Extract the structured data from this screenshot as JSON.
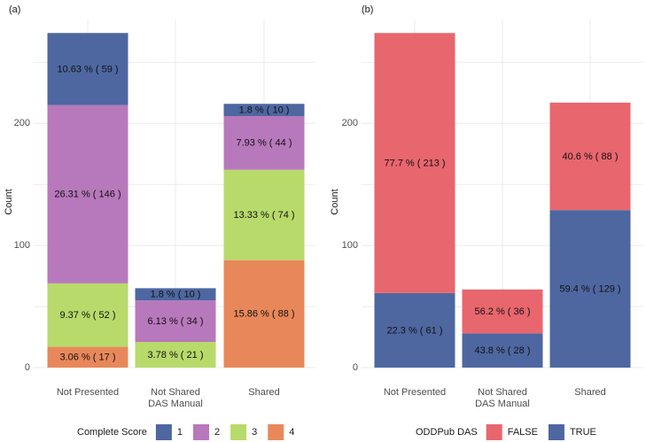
{
  "chart_data": [
    {
      "panel": "(a)",
      "type": "bar",
      "stacked": true,
      "ylabel": "Count",
      "xlabel": "",
      "ylim": [
        0,
        280
      ],
      "yticks": [
        0,
        100,
        200
      ],
      "grid": true,
      "categories": [
        [
          "Not Presented"
        ],
        [
          "Not Shared",
          "DAS Manual"
        ],
        [
          "Shared"
        ]
      ],
      "legend": {
        "title": "Complete Score",
        "placement": "bottom"
      },
      "series": [
        {
          "name": "4",
          "color": "#E8885A",
          "values": [
            17,
            0,
            88
          ],
          "labels": [
            "3.06 % ( 17 )",
            "",
            "15.86 % ( 88 )"
          ]
        },
        {
          "name": "3",
          "color": "#B8DA6A",
          "values": [
            52,
            21,
            74
          ],
          "labels": [
            "9.37 % ( 52 )",
            "3.78 % ( 21 )",
            "13.33 % ( 74 )"
          ]
        },
        {
          "name": "2",
          "color": "#B878BC",
          "values": [
            146,
            34,
            44
          ],
          "labels": [
            "26.31 % ( 146 )",
            "6.13 % ( 34 )",
            "7.93 % ( 44 )"
          ]
        },
        {
          "name": "1",
          "color": "#4E67A1",
          "values": [
            59,
            10,
            10
          ],
          "labels": [
            "10.63 % ( 59 )",
            "1.8 % ( 10 )",
            "1.8 % ( 10 )"
          ]
        }
      ],
      "legend_order": [
        "1",
        "2",
        "3",
        "4"
      ]
    },
    {
      "panel": "(b)",
      "type": "bar",
      "stacked": true,
      "ylabel": "Count",
      "xlabel": "",
      "ylim": [
        0,
        280
      ],
      "yticks": [
        0,
        100,
        200
      ],
      "grid": true,
      "categories": [
        [
          "Not Presented"
        ],
        [
          "Not Shared",
          "DAS Manual"
        ],
        [
          "Shared"
        ]
      ],
      "legend": {
        "title": "ODDPub DAS",
        "placement": "bottom"
      },
      "series": [
        {
          "name": "TRUE",
          "color": "#4E67A1",
          "values": [
            61,
            28,
            129
          ],
          "labels": [
            "22.3 % ( 61 )",
            "43.8 % ( 28 )",
            "59.4 % ( 129 )"
          ]
        },
        {
          "name": "FALSE",
          "color": "#E8666E",
          "values": [
            213,
            36,
            88
          ],
          "labels": [
            "77.7 % ( 213 )",
            "56.2 % ( 36 )",
            "40.6 % ( 88 )"
          ]
        }
      ],
      "legend_order": [
        "FALSE",
        "TRUE"
      ]
    }
  ]
}
